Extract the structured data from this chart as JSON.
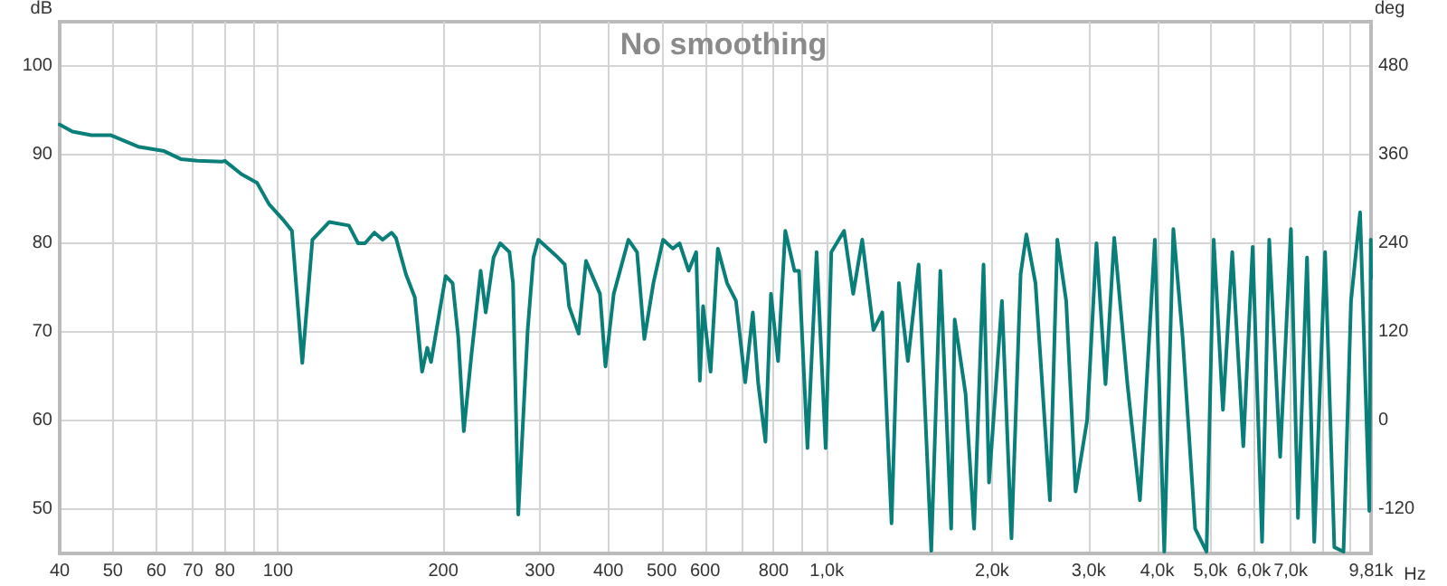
{
  "chart_data": {
    "type": "line",
    "title": "No smoothing",
    "xlabel": "Hz",
    "ylabel": "dB",
    "y2label": "deg",
    "log": "x",
    "grid": true,
    "marker": "none",
    "line_style": "solid",
    "color": "#0a7f7a",
    "xlim": [
      40,
      9810
    ],
    "ylim": [
      45,
      105
    ],
    "y2lim": [
      -180,
      540
    ],
    "xticks": [
      40,
      50,
      60,
      70,
      80,
      {
        "value": 90,
        "label": null
      },
      100,
      200,
      300,
      400,
      500,
      600,
      {
        "value": 700,
        "label": null
      },
      800,
      {
        "value": 900,
        "label": null
      },
      {
        "value": 1000,
        "label": "1,0k"
      },
      {
        "value": 2000,
        "label": "2,0k"
      },
      {
        "value": 3000,
        "label": "3,0k"
      },
      {
        "value": 4000,
        "label": "4,0k"
      },
      {
        "value": 5000,
        "label": "5,0k"
      },
      {
        "value": 6000,
        "label": "6,0k"
      },
      {
        "value": 7000,
        "label": "7,0k"
      },
      {
        "value": 8000,
        "label": null
      },
      {
        "value": 9000,
        "label": null
      },
      {
        "value": 9810,
        "label": "9,81k"
      }
    ],
    "yticks": [
      50,
      60,
      70,
      80,
      90,
      100
    ],
    "y2ticks": [
      -120,
      0,
      120,
      240,
      360,
      480
    ],
    "x": [
      40,
      42.2,
      45.7,
      49.5,
      55.6,
      62,
      66.5,
      71.3,
      78.9,
      80,
      85.7,
      91.6,
      96.3,
      102,
      106,
      110.7,
      115.5,
      124,
      134.6,
      139.9,
      144,
      149.8,
      155,
      161,
      164,
      171,
      177.5,
      183,
      187,
      190,
      202,
      208,
      213,
      218,
      225,
      234,
      239,
      247,
      254,
      264,
      268,
      274,
      285,
      292,
      298,
      321,
      333,
      339,
      353,
      364,
      386,
      395,
      409,
      435,
      451,
      465,
      483,
      503,
      524,
      539,
      560,
      578,
      587,
      595,
      614,
      633,
      658,
      683,
      710,
      733,
      750,
      773,
      791,
      815,
      840,
      873,
      890,
      922,
      958,
      995,
      1019,
      1075,
      1117,
      1160,
      1216,
      1262,
      1312,
      1353,
      1405,
      1470,
      1550,
      1610,
      1685,
      1710,
      1790,
      1855,
      1930,
      1975,
      2085,
      2170,
      2255,
      2310,
      2400,
      2550,
      2630,
      2730,
      2840,
      2980,
      3100,
      3220,
      3340,
      3530,
      3720,
      3960,
      4120,
      4280,
      4450,
      4690,
      4920,
      5070,
      5270,
      5480,
      5740,
      5970,
      6210,
      6400,
      6700,
      7010,
      7220,
      7500,
      7730,
      8090,
      8410,
      8740,
      9020,
      9370,
      9740,
      9800,
      9810
    ],
    "values": [
      93.4,
      92.6,
      92.2,
      92.2,
      90.9,
      90.4,
      89.5,
      89.3,
      89.2,
      89.3,
      87.8,
      86.8,
      84.4,
      82.7,
      81.4,
      66.5,
      80.4,
      82.4,
      82,
      80,
      80,
      81.2,
      80.4,
      81.2,
      80.6,
      76.5,
      73.9,
      65.5,
      68.2,
      66.6,
      76.3,
      75.5,
      69.4,
      58.8,
      67.3,
      76.9,
      72.2,
      78.4,
      80,
      79,
      75.5,
      49.4,
      70.2,
      78.4,
      80.4,
      78.6,
      77.6,
      72.9,
      69.8,
      78,
      74.3,
      66.1,
      74.3,
      80.4,
      79,
      69.2,
      75.5,
      80.4,
      79.4,
      80,
      76.9,
      79,
      64.5,
      72.9,
      65.5,
      79.4,
      75.5,
      73.5,
      64.3,
      72.2,
      64.1,
      57.6,
      74.3,
      66.7,
      81.4,
      76.9,
      76.9,
      56.9,
      79,
      56.9,
      79,
      81.4,
      74.3,
      80.4,
      70.2,
      72.2,
      48.4,
      75.5,
      66.7,
      77.6,
      45.3,
      76.9,
      47.8,
      71.4,
      63,
      47.8,
      77.6,
      53,
      73.5,
      46.7,
      76.5,
      81,
      75.5,
      51,
      80.4,
      73.5,
      52,
      60,
      80,
      64.1,
      80.6,
      64.1,
      51,
      80.4,
      45.2,
      81.6,
      69.4,
      47.8,
      45.2,
      80.4,
      61.2,
      79,
      57.1,
      79.6,
      46.3,
      80.4,
      55.9,
      81.6,
      49,
      78.4,
      46.3,
      79,
      45.7,
      45.2,
      73.5,
      83.5,
      49.8,
      80.4,
      76
    ]
  }
}
